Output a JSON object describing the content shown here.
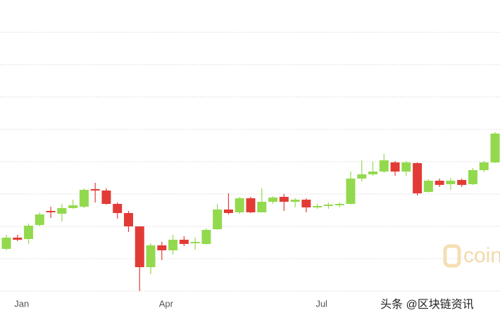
{
  "chart_data": {
    "type": "candlestick",
    "categories": [
      null,
      "Jan",
      null,
      null,
      null,
      null,
      null,
      null,
      null,
      null,
      null,
      null,
      null,
      null,
      "Apr",
      null,
      null,
      null,
      null,
      null,
      null,
      null,
      null,
      null,
      null,
      null,
      null,
      null,
      "Jul",
      null,
      null,
      null,
      null,
      null,
      null,
      null,
      null,
      null,
      null,
      null,
      null,
      null,
      null,
      null,
      null
    ],
    "open": [
      60,
      76,
      74,
      94,
      114,
      110,
      118,
      120,
      145,
      143,
      124,
      111,
      92,
      34,
      65,
      58,
      73,
      68,
      67,
      88,
      116,
      112,
      132,
      112,
      127,
      134,
      127,
      130,
      119,
      121,
      122,
      124,
      160,
      166,
      170,
      183,
      170,
      182,
      141,
      157,
      152,
      158,
      152,
      172,
      183
    ],
    "high": [
      80,
      80,
      96,
      112,
      120,
      124,
      130,
      146,
      154,
      146,
      126,
      114,
      92,
      68,
      70,
      80,
      78,
      76,
      89,
      124,
      139,
      134,
      134,
      146,
      135,
      138,
      132,
      132,
      124,
      126,
      126,
      170,
      186,
      184,
      195,
      185,
      185,
      183,
      159,
      160,
      161,
      160,
      175,
      185,
      226
    ],
    "low": [
      58,
      71,
      67,
      92,
      104,
      99,
      117,
      118,
      126,
      123,
      103,
      84,
      0,
      24,
      44,
      52,
      64,
      59,
      66,
      87,
      109,
      110,
      111,
      112,
      124,
      114,
      119,
      112,
      117,
      117,
      119,
      123,
      156,
      164,
      168,
      164,
      164,
      136,
      140,
      148,
      144,
      148,
      151,
      169,
      182
    ],
    "close": [
      76,
      73,
      93,
      109,
      112,
      118,
      122,
      144,
      143,
      124,
      111,
      92,
      34,
      65,
      58,
      73,
      67,
      70,
      87,
      116,
      111,
      132,
      112,
      127,
      133,
      127,
      130,
      119,
      121,
      123,
      124,
      160,
      166,
      170,
      186,
      170,
      183,
      139,
      157,
      151,
      157,
      151,
      172,
      183,
      224
    ],
    "up_color": "#93d94e",
    "down_color": "#e23b36",
    "ylim": [
      0,
      414
    ],
    "yticks": [
      0,
      46,
      92,
      138,
      184,
      230,
      276,
      322,
      368
    ],
    "grid": true,
    "watermark": "coin",
    "source": "头条 @区块链资讯"
  }
}
